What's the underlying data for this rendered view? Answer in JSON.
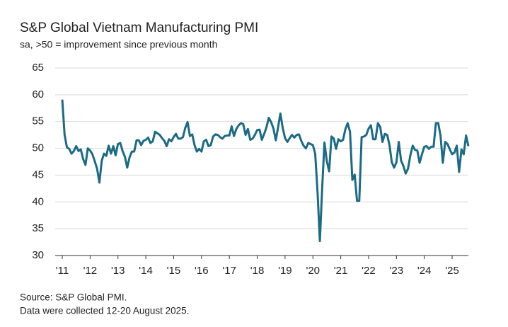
{
  "chart_data": {
    "type": "line",
    "title": "S&P Global Vietnam Manufacturing PMI",
    "subtitle": "sa, >50 = improvement since previous month",
    "source": "Source: S&P Global PMI.",
    "note": "Data were collected 12-20 August 2025.",
    "categories": [
      "'11",
      null,
      null,
      null,
      null,
      null,
      null,
      null,
      null,
      null,
      null,
      null,
      "'12",
      null,
      null,
      null,
      null,
      null,
      null,
      null,
      null,
      null,
      null,
      null,
      "'13",
      null,
      null,
      null,
      null,
      null,
      null,
      null,
      null,
      null,
      null,
      null,
      "'14",
      null,
      null,
      null,
      null,
      null,
      null,
      null,
      null,
      null,
      null,
      null,
      "'15",
      null,
      null,
      null,
      null,
      null,
      null,
      null,
      null,
      null,
      null,
      null,
      "'16",
      null,
      null,
      null,
      null,
      null,
      null,
      null,
      null,
      null,
      null,
      null,
      "'17",
      null,
      null,
      null,
      null,
      null,
      null,
      null,
      null,
      null,
      null,
      null,
      "'18",
      null,
      null,
      null,
      null,
      null,
      null,
      null,
      null,
      null,
      null,
      null,
      "'19",
      null,
      null,
      null,
      null,
      null,
      null,
      null,
      null,
      null,
      null,
      null,
      "'20",
      null,
      null,
      null,
      null,
      null,
      null,
      null,
      null,
      null,
      null,
      null,
      "'21",
      null,
      null,
      null,
      null,
      null,
      null,
      null,
      null,
      null,
      null,
      null,
      "'22",
      null,
      null,
      null,
      null,
      null,
      null,
      null,
      null,
      null,
      null,
      null,
      "'23",
      null,
      null,
      null,
      null,
      null,
      null,
      null,
      null,
      null,
      null,
      null,
      "'24",
      null,
      null,
      null,
      null,
      null,
      null,
      null,
      null,
      null,
      null,
      null,
      "'25",
      null,
      null,
      null,
      null,
      null,
      null,
      null
    ],
    "series": [
      {
        "name": "PMI",
        "color": "#1b6b84",
        "values": [
          59.1,
          52.5,
          50.2,
          49.9,
          49.0,
          49.5,
          50.4,
          49.5,
          49.8,
          48.0,
          46.9,
          50.0,
          49.6,
          48.9,
          47.6,
          46.2,
          43.6,
          47.7,
          49.0,
          48.6,
          50.5,
          49.0,
          50.4,
          48.7,
          50.8,
          51.0,
          49.5,
          48.4,
          46.4,
          48.3,
          49.4,
          49.4,
          51.5,
          51.5,
          50.6,
          51.4,
          51.6,
          52.0,
          51.0,
          51.3,
          53.1,
          52.8,
          52.5,
          51.9,
          51.4,
          50.4,
          51.7,
          51.3,
          52.1,
          52.7,
          51.8,
          51.8,
          52.1,
          53.8,
          54.9,
          52.3,
          52.6,
          50.6,
          49.4,
          49.9,
          49.4,
          51.3,
          51.6,
          50.4,
          50.6,
          52.2,
          52.6,
          52.5,
          52.1,
          51.8,
          52.3,
          52.4,
          52.4,
          54.1,
          52.3,
          53.6,
          54.3,
          54.7,
          54.5,
          52.5,
          53.6,
          51.6,
          51.8,
          52.5,
          53.4,
          53.5,
          51.6,
          52.7,
          53.9,
          55.7,
          54.9,
          53.7,
          51.5,
          53.9,
          56.5,
          53.8,
          51.9,
          51.2,
          51.9,
          52.5,
          52.0,
          52.5,
          52.6,
          51.4,
          50.5,
          50.0,
          51.0,
          50.8,
          50.6,
          49.0,
          41.9,
          32.7,
          42.7,
          51.1,
          47.6,
          45.7,
          52.2,
          51.8,
          49.9,
          51.7,
          51.3,
          51.6,
          53.6,
          54.7,
          53.1,
          44.1,
          45.1,
          40.2,
          40.2,
          52.1,
          52.2,
          52.5,
          53.7,
          54.3,
          51.7,
          51.7,
          54.7,
          54.0,
          51.2,
          52.7,
          52.5,
          50.6,
          47.4,
          46.4,
          47.4,
          51.2,
          47.7,
          46.7,
          45.3,
          46.2,
          48.7,
          50.5,
          49.7,
          49.6,
          47.3,
          48.9,
          50.3,
          50.4,
          49.9,
          50.3,
          50.3,
          54.7,
          54.7,
          52.4,
          47.3,
          51.2,
          50.8,
          49.8,
          48.9,
          49.2,
          50.5,
          45.6,
          49.8,
          48.9,
          52.4,
          50.4
        ]
      }
    ],
    "ylim": [
      30,
      65
    ],
    "yticks": [
      30,
      35,
      40,
      45,
      50,
      55,
      60,
      65
    ],
    "grid": true
  }
}
